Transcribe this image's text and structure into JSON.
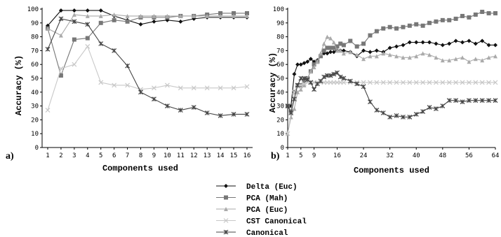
{
  "chart_data": [
    {
      "type": "line",
      "panel_label": "a)",
      "xlabel": "Components used",
      "ylabel": "Accuracy (%)",
      "ylim": [
        0,
        100
      ],
      "yticks": [
        0,
        10,
        20,
        30,
        40,
        50,
        60,
        70,
        80,
        90,
        100
      ],
      "categories": [
        "1",
        "2",
        "3",
        "4",
        "5",
        "6",
        "7",
        "8",
        "9",
        "10",
        "11",
        "12",
        "13",
        "14",
        "15",
        "16"
      ],
      "grid": false,
      "series": [
        {
          "name": "Delta (Euc)",
          "values": [
            88,
            99,
            99,
            99,
            99,
            95,
            92,
            89,
            91,
            92,
            91,
            93,
            94,
            94,
            94,
            94
          ]
        },
        {
          "name": "PCA (Mah)",
          "values": [
            86,
            52,
            78,
            79,
            90,
            92,
            91,
            94,
            94,
            94,
            95,
            95,
            96,
            97,
            97,
            97
          ]
        },
        {
          "name": "PCA (Euc)",
          "values": [
            86,
            81,
            96,
            95,
            95,
            96,
            95,
            95,
            95,
            95,
            95,
            95,
            95,
            95,
            95,
            95
          ]
        },
        {
          "name": "CST Canonical",
          "values": [
            27,
            57,
            60,
            73,
            47,
            45,
            45,
            42,
            43,
            45,
            43,
            43,
            43,
            43,
            43,
            44
          ]
        },
        {
          "name": "Canonical",
          "values": [
            71,
            93,
            91,
            89,
            75,
            70,
            59,
            40,
            35,
            30,
            27,
            29,
            25,
            23,
            24,
            24
          ]
        }
      ]
    },
    {
      "type": "line",
      "panel_label": "b)",
      "xlabel": "Components used",
      "ylabel": "Accuracy (%)",
      "ylim": [
        0,
        100
      ],
      "xlim": [
        1,
        64
      ],
      "yticks": [
        0,
        10,
        20,
        30,
        40,
        50,
        60,
        70,
        80,
        90,
        100
      ],
      "xticks": [
        1,
        5,
        9,
        16,
        24,
        32,
        40,
        48,
        56,
        64
      ],
      "grid": false,
      "series": [
        {
          "name": "Delta (Euc)",
          "x": [
            1,
            2,
            3,
            4,
            5,
            6,
            7,
            8,
            9,
            10,
            11,
            12,
            13,
            14,
            15,
            16,
            17,
            18,
            20,
            22,
            24,
            26,
            28,
            30,
            32,
            34,
            36,
            38,
            40,
            42,
            44,
            46,
            48,
            50,
            52,
            54,
            56,
            58,
            60,
            62,
            64
          ],
          "values": [
            30,
            30,
            53,
            60,
            60,
            61,
            62,
            64,
            62,
            63,
            67,
            68,
            68,
            69,
            69,
            70,
            70,
            70,
            69,
            66,
            70,
            69,
            70,
            69,
            72,
            73,
            74,
            76,
            76,
            76,
            76,
            75,
            74,
            75,
            77,
            76,
            77,
            75,
            77,
            74,
            74
          ]
        },
        {
          "name": "PCA (Mah)",
          "x": [
            1,
            2,
            3,
            4,
            5,
            6,
            7,
            8,
            9,
            10,
            11,
            12,
            13,
            14,
            15,
            16,
            17,
            18,
            20,
            22,
            24,
            26,
            28,
            30,
            32,
            34,
            36,
            38,
            40,
            42,
            44,
            46,
            48,
            50,
            52,
            54,
            56,
            58,
            60,
            62,
            64
          ],
          "values": [
            30,
            26,
            40,
            45,
            45,
            48,
            50,
            55,
            60,
            62,
            66,
            70,
            72,
            72,
            72,
            73,
            75,
            74,
            77,
            73,
            75,
            81,
            84,
            86,
            87,
            86,
            87,
            88,
            89,
            88,
            90,
            91,
            92,
            92,
            93,
            95,
            94,
            96,
            98,
            97,
            97
          ]
        },
        {
          "name": "PCA (Euc)",
          "x": [
            1,
            2,
            3,
            4,
            5,
            6,
            7,
            8,
            9,
            10,
            11,
            12,
            13,
            14,
            15,
            16,
            17,
            18,
            20,
            22,
            24,
            26,
            28,
            30,
            32,
            34,
            36,
            38,
            40,
            42,
            44,
            46,
            48,
            50,
            52,
            54,
            56,
            58,
            60,
            62,
            64
          ],
          "values": [
            10,
            22,
            28,
            40,
            42,
            45,
            50,
            55,
            58,
            62,
            68,
            75,
            80,
            79,
            76,
            70,
            70,
            68,
            69,
            67,
            64,
            66,
            66,
            68,
            67,
            66,
            65,
            65,
            66,
            68,
            67,
            65,
            63,
            63,
            64,
            65,
            62,
            64,
            63,
            65,
            66
          ]
        },
        {
          "name": "CST Canonical",
          "x": [
            1,
            2,
            3,
            4,
            5,
            6,
            7,
            8,
            9,
            10,
            11,
            12,
            13,
            14,
            15,
            16,
            17,
            18,
            20,
            22,
            24,
            26,
            28,
            30,
            32,
            34,
            36,
            38,
            40,
            42,
            44,
            46,
            48,
            50,
            52,
            54,
            56,
            58,
            60,
            62,
            64
          ],
          "values": [
            10,
            25,
            40,
            44,
            45,
            46,
            47,
            47,
            47,
            47,
            47,
            47,
            47,
            47,
            47,
            47,
            47,
            47,
            47,
            47,
            47,
            47,
            47,
            47,
            47,
            47,
            47,
            47,
            47,
            47,
            47,
            47,
            47,
            47,
            47,
            47,
            47,
            47,
            47,
            47,
            47
          ]
        },
        {
          "name": "Canonical",
          "x": [
            1,
            2,
            3,
            4,
            5,
            6,
            7,
            8,
            9,
            10,
            11,
            12,
            13,
            14,
            15,
            16,
            17,
            18,
            20,
            22,
            24,
            26,
            28,
            30,
            32,
            34,
            36,
            38,
            40,
            42,
            44,
            46,
            48,
            50,
            52,
            54,
            56,
            58,
            60,
            62,
            64
          ],
          "values": [
            30,
            25,
            35,
            45,
            50,
            50,
            49,
            47,
            42,
            46,
            48,
            51,
            52,
            52,
            53,
            54,
            51,
            50,
            48,
            46,
            44,
            33,
            27,
            25,
            22,
            23,
            22,
            22,
            24,
            26,
            29,
            28,
            30,
            34,
            34,
            33,
            34,
            34,
            34,
            34,
            34
          ]
        }
      ]
    }
  ],
  "legend": {
    "items": [
      {
        "label": "Delta (Euc)",
        "color": "#111111",
        "marker": "diamond"
      },
      {
        "label": "PCA (Mah)",
        "color": "#777777",
        "marker": "square"
      },
      {
        "label": "PCA (Euc)",
        "color": "#aaaaaa",
        "marker": "triangle"
      },
      {
        "label": "CST Canonical",
        "color": "#c8c8c8",
        "marker": "x"
      },
      {
        "label": "Canonical",
        "color": "#444444",
        "marker": "star"
      }
    ]
  }
}
